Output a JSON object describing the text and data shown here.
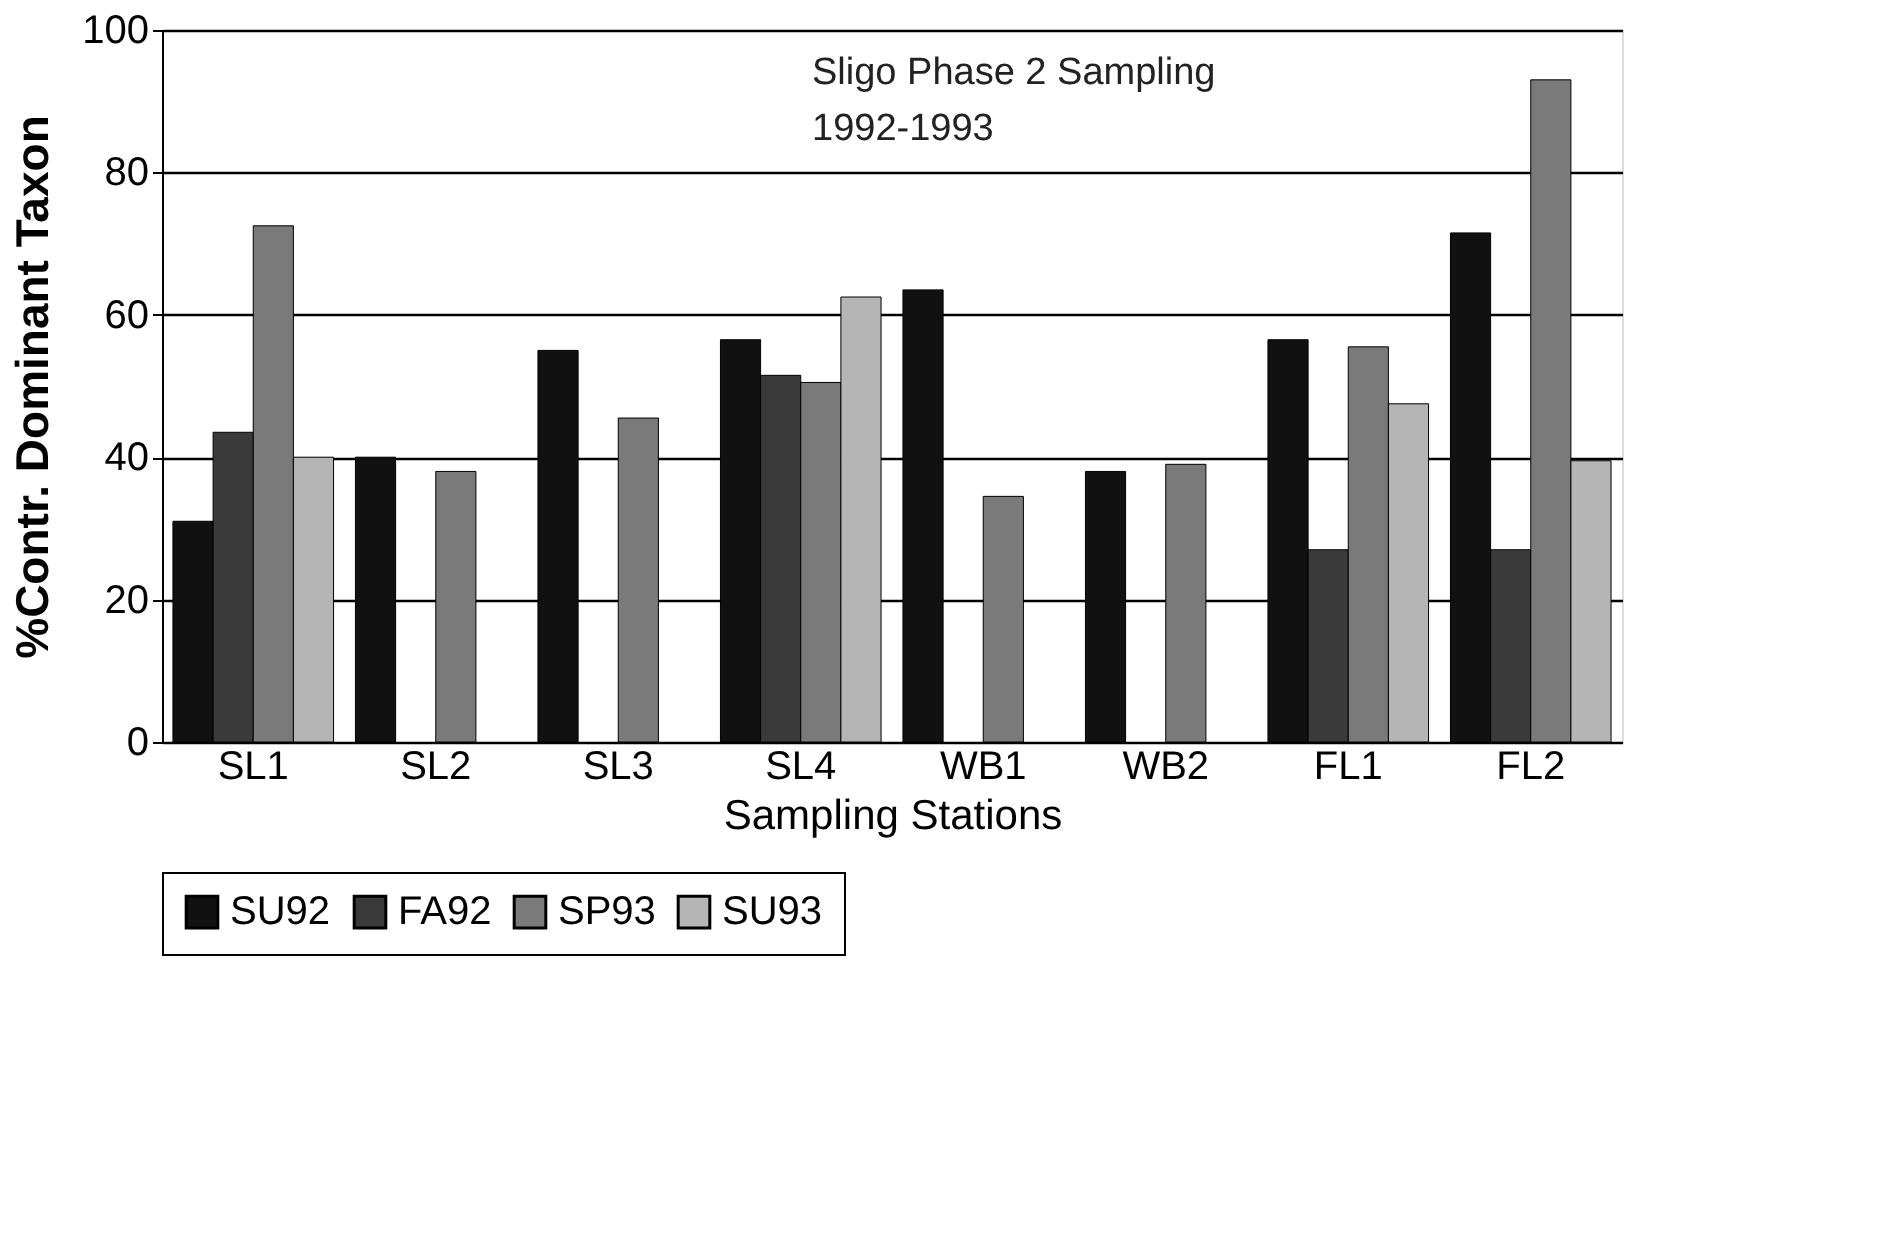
{
  "chart_data": {
    "type": "bar",
    "categories": [
      "SL1",
      "SL2",
      "SL3",
      "SL4",
      "WB1",
      "WB2",
      "FL1",
      "FL2"
    ],
    "series": [
      {
        "name": "SU92",
        "color": "#111111",
        "values": [
          31,
          40,
          55,
          56.5,
          63.5,
          38,
          56.5,
          71.5
        ]
      },
      {
        "name": "FA92",
        "color": "#3a3a3a",
        "values": [
          43.5,
          null,
          null,
          51.5,
          null,
          null,
          27,
          27
        ]
      },
      {
        "name": "SP93",
        "color": "#7a7a7a",
        "values": [
          72.5,
          38,
          45.5,
          50.5,
          34.5,
          39,
          55.5,
          93
        ]
      },
      {
        "name": "SU93",
        "color": "#b5b5b5",
        "values": [
          40,
          null,
          null,
          62.5,
          null,
          null,
          47.5,
          39.5
        ]
      }
    ],
    "xlabel": "Sampling Stations",
    "ylabel": "%Contr. Dominant Taxon",
    "ylim": [
      0,
      100
    ],
    "yticks": [
      0,
      20,
      40,
      60,
      80,
      100
    ],
    "annotations": [
      "Sligo Phase 2 Sampling",
      "1992-1993"
    ],
    "grid": "y",
    "legend": "bottom"
  }
}
